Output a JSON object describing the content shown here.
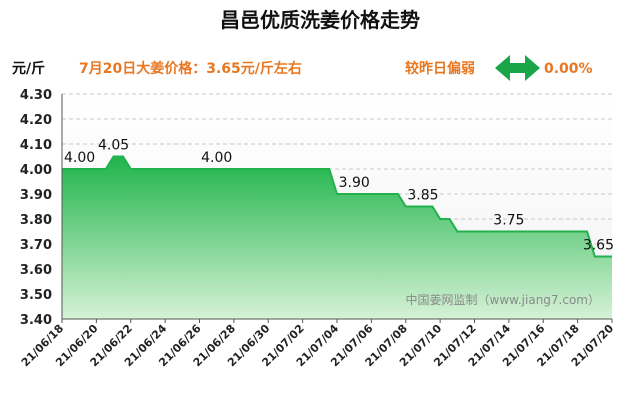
{
  "header": {
    "title": "昌邑优质洗姜价格走势",
    "unit_label": "元/斤",
    "price_note": "7月20日大姜价格：3.65元/斤左右",
    "compare_label": "较昨日偏弱",
    "compare_value": "0.00%",
    "compare_icon": "double-arrow-icon",
    "accent_color": "#e87722",
    "arrow_color": "#1aa648"
  },
  "watermark": "中国姜网监制（www.jiang7.com）",
  "chart_data": {
    "type": "area",
    "step": true,
    "ylim": [
      3.4,
      4.3
    ],
    "yticks": [
      "3.40",
      "3.50",
      "3.60",
      "3.70",
      "3.80",
      "3.90",
      "4.00",
      "4.10",
      "4.20",
      "4.30"
    ],
    "xticks": [
      "21/06/18",
      "21/06/20",
      "21/06/22",
      "21/06/24",
      "21/06/26",
      "21/06/28",
      "21/06/30",
      "21/07/02",
      "21/07/04",
      "21/07/06",
      "21/07/08",
      "21/07/10",
      "21/07/12",
      "21/07/14",
      "21/07/16",
      "21/07/18",
      "21/07/20"
    ],
    "x": [
      "06/18",
      "06/19",
      "06/20",
      "06/21",
      "06/22",
      "06/23",
      "06/24",
      "06/25",
      "06/26",
      "06/27",
      "06/28",
      "06/29",
      "06/30",
      "07/01",
      "07/02",
      "07/03",
      "07/04",
      "07/05",
      "07/06",
      "07/07",
      "07/08",
      "07/09",
      "07/10",
      "07/11",
      "07/12",
      "07/13",
      "07/14",
      "07/15",
      "07/16",
      "07/17",
      "07/18",
      "07/19",
      "07/20"
    ],
    "values": [
      4.0,
      4.0,
      4.0,
      4.05,
      4.0,
      4.0,
      4.0,
      4.0,
      4.0,
      4.0,
      4.0,
      4.0,
      4.0,
      4.0,
      4.0,
      4.0,
      3.9,
      3.9,
      3.9,
      3.9,
      3.85,
      3.85,
      3.8,
      3.75,
      3.75,
      3.75,
      3.75,
      3.75,
      3.75,
      3.75,
      3.75,
      3.65,
      3.65
    ],
    "labels": [
      {
        "x": "06/18",
        "value": "4.00"
      },
      {
        "x": "06/21",
        "value": "4.05"
      },
      {
        "x": "06/27",
        "value": "4.00"
      },
      {
        "x": "07/05",
        "value": "3.90"
      },
      {
        "x": "07/09",
        "value": "3.85"
      },
      {
        "x": "07/14",
        "value": "3.75"
      },
      {
        "x": "07/20",
        "value": "3.65"
      }
    ],
    "grid": true,
    "series_color": "#22b14c"
  }
}
